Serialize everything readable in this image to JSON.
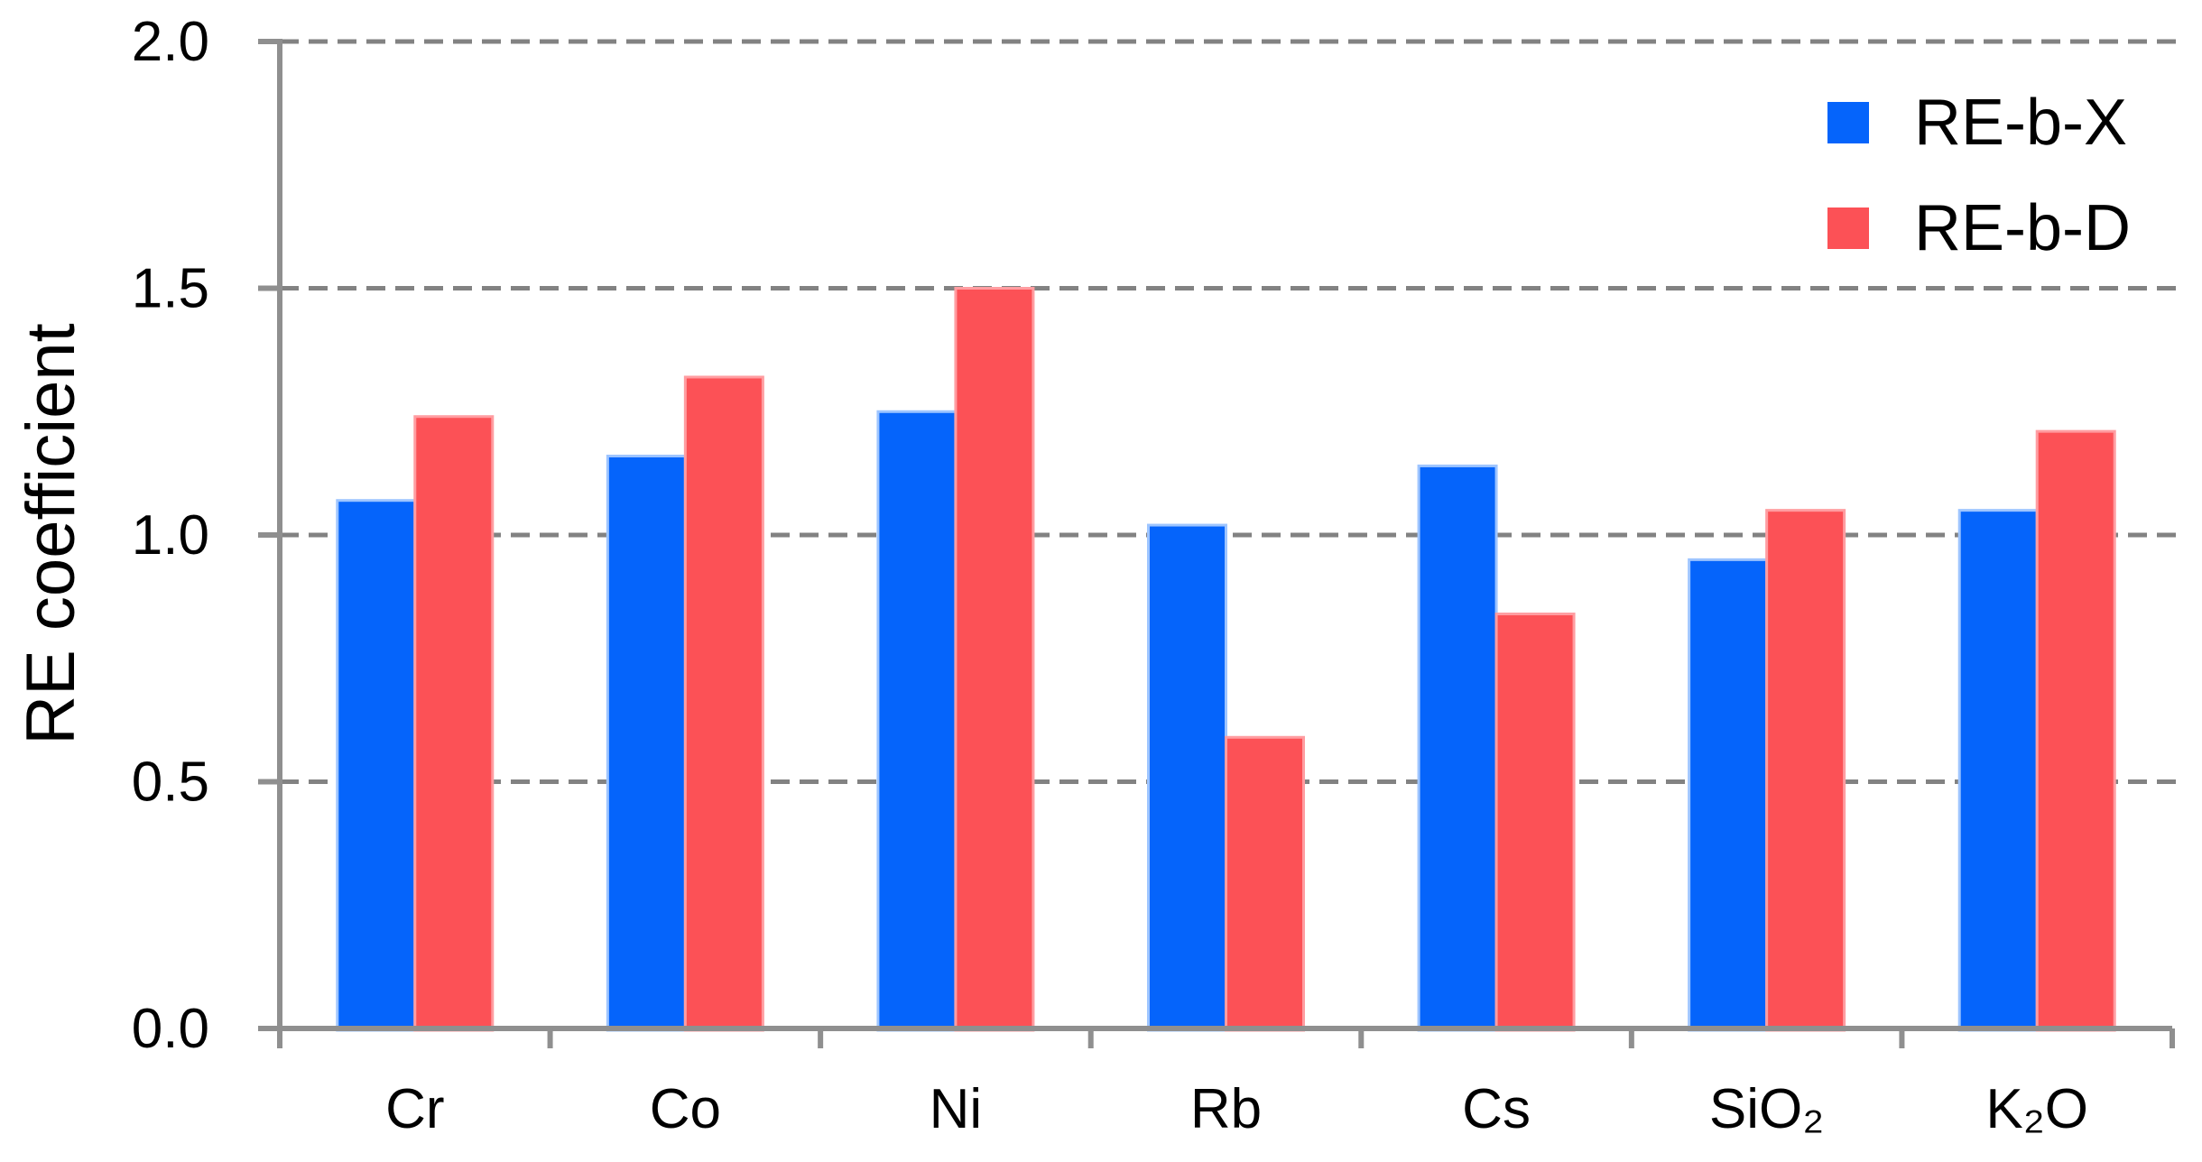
{
  "chart_data": {
    "type": "bar",
    "ylabel": "RE coefficient",
    "categories": [
      "Cr",
      "Co",
      "Ni",
      "Rb",
      "Cs",
      "SiO₂",
      "K₂O"
    ],
    "series": [
      {
        "name": "RE-b-X",
        "color": "#0564fb",
        "edge": "#9ec5ff",
        "values": [
          1.07,
          1.16,
          1.25,
          1.02,
          1.14,
          0.95,
          1.05
        ]
      },
      {
        "name": "RE-b-D",
        "color": "#fc5156",
        "edge": "#ff9da1",
        "values": [
          1.24,
          1.32,
          1.5,
          0.59,
          0.84,
          1.05,
          1.21
        ]
      }
    ],
    "ylim": [
      0,
      2
    ],
    "yticks": [
      {
        "v": 0.0,
        "label": "0.0"
      },
      {
        "v": 0.5,
        "label": "0.5"
      },
      {
        "v": 1.0,
        "label": "1.0"
      },
      {
        "v": 1.5,
        "label": "1.5"
      },
      {
        "v": 2.0,
        "label": "2.0"
      }
    ],
    "grid": "dashed-horizontal",
    "legend_position": "top-right"
  },
  "colors": {
    "background": "#ffffff",
    "axis": "#8f8f8f",
    "grid": "#828282",
    "text": "#000000"
  }
}
